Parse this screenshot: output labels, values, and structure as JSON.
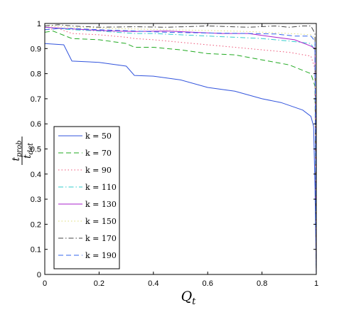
{
  "chart_data": {
    "type": "line",
    "xlabel_main": "Q",
    "xlabel_sub": "t",
    "ylabel_num": "t",
    "ylabel_num_sub": "prob",
    "ylabel_den": "t",
    "ylabel_den_sub": "det",
    "xlim": [
      0,
      1
    ],
    "ylim": [
      0,
      1
    ],
    "xticks": [
      "0",
      "0.2",
      "0.4",
      "0.6",
      "0.8",
      "1"
    ],
    "yticks": [
      "0",
      "0.1",
      "0.2",
      "0.3",
      "0.4",
      "0.5",
      "0.6",
      "0.7",
      "0.8",
      "0.9",
      "1"
    ],
    "grid": false,
    "legend_position": "lower-left",
    "series": [
      {
        "name": "k = 50",
        "color": "#3355dd",
        "dash": "solid",
        "points": [
          [
            0,
            0.92
          ],
          [
            0.07,
            0.915
          ],
          [
            0.1,
            0.85
          ],
          [
            0.2,
            0.845
          ],
          [
            0.3,
            0.83
          ],
          [
            0.33,
            0.793
          ],
          [
            0.4,
            0.79
          ],
          [
            0.5,
            0.775
          ],
          [
            0.6,
            0.745
          ],
          [
            0.7,
            0.73
          ],
          [
            0.8,
            0.7
          ],
          [
            0.87,
            0.685
          ],
          [
            0.95,
            0.655
          ],
          [
            0.98,
            0.63
          ],
          [
            0.99,
            0.59
          ],
          [
            0.995,
            0.35
          ],
          [
            1.0,
            0.0
          ]
        ]
      },
      {
        "name": "k = 70",
        "color": "#22aa22",
        "dash": "dashed",
        "points": [
          [
            0,
            0.965
          ],
          [
            0.03,
            0.97
          ],
          [
            0.1,
            0.94
          ],
          [
            0.2,
            0.935
          ],
          [
            0.3,
            0.92
          ],
          [
            0.33,
            0.905
          ],
          [
            0.4,
            0.905
          ],
          [
            0.5,
            0.895
          ],
          [
            0.6,
            0.88
          ],
          [
            0.7,
            0.875
          ],
          [
            0.8,
            0.855
          ],
          [
            0.9,
            0.835
          ],
          [
            0.98,
            0.8
          ],
          [
            0.995,
            0.75
          ],
          [
            1.0,
            0.0
          ]
        ]
      },
      {
        "name": "k = 90",
        "color": "#ee5577",
        "dash": "dotted",
        "points": [
          [
            0,
            0.975
          ],
          [
            0.05,
            0.98
          ],
          [
            0.1,
            0.96
          ],
          [
            0.2,
            0.955
          ],
          [
            0.3,
            0.945
          ],
          [
            0.33,
            0.94
          ],
          [
            0.4,
            0.935
          ],
          [
            0.5,
            0.925
          ],
          [
            0.6,
            0.915
          ],
          [
            0.7,
            0.905
          ],
          [
            0.8,
            0.895
          ],
          [
            0.9,
            0.885
          ],
          [
            0.98,
            0.87
          ],
          [
            0.995,
            0.82
          ],
          [
            1.0,
            0.0
          ]
        ]
      },
      {
        "name": "k = 110",
        "color": "#33cccc",
        "dash": "dashdot",
        "points": [
          [
            0,
            0.985
          ],
          [
            0.1,
            0.975
          ],
          [
            0.2,
            0.97
          ],
          [
            0.33,
            0.96
          ],
          [
            0.4,
            0.96
          ],
          [
            0.5,
            0.955
          ],
          [
            0.6,
            0.95
          ],
          [
            0.7,
            0.945
          ],
          [
            0.8,
            0.94
          ],
          [
            0.9,
            0.93
          ],
          [
            0.98,
            0.92
          ],
          [
            0.995,
            0.89
          ],
          [
            1.0,
            0.0
          ]
        ]
      },
      {
        "name": "k = 130",
        "color": "#aa22cc",
        "dash": "solid",
        "points": [
          [
            0,
            0.985
          ],
          [
            0.08,
            0.98
          ],
          [
            0.15,
            0.975
          ],
          [
            0.25,
            0.97
          ],
          [
            0.33,
            0.968
          ],
          [
            0.45,
            0.97
          ],
          [
            0.55,
            0.965
          ],
          [
            0.65,
            0.96
          ],
          [
            0.75,
            0.96
          ],
          [
            0.85,
            0.945
          ],
          [
            0.92,
            0.935
          ],
          [
            0.98,
            0.91
          ],
          [
            0.995,
            0.9
          ],
          [
            1.0,
            0.0
          ]
        ]
      },
      {
        "name": "k = 150",
        "color": "#dddd77",
        "dash": "dotted",
        "points": [
          [
            0,
            0.99
          ],
          [
            0.1,
            0.985
          ],
          [
            0.2,
            0.982
          ],
          [
            0.33,
            0.978
          ],
          [
            0.45,
            0.975
          ],
          [
            0.6,
            0.972
          ],
          [
            0.75,
            0.968
          ],
          [
            0.9,
            0.96
          ],
          [
            0.98,
            0.955
          ],
          [
            0.995,
            0.94
          ],
          [
            1.0,
            0.0
          ]
        ]
      },
      {
        "name": "k = 170",
        "color": "#444444",
        "dash": "dashdot",
        "points": [
          [
            0,
            0.99
          ],
          [
            0.05,
            0.995
          ],
          [
            0.1,
            0.99
          ],
          [
            0.2,
            0.985
          ],
          [
            0.33,
            0.987
          ],
          [
            0.45,
            0.985
          ],
          [
            0.6,
            0.99
          ],
          [
            0.75,
            0.985
          ],
          [
            0.85,
            0.99
          ],
          [
            0.9,
            0.985
          ],
          [
            0.95,
            0.99
          ],
          [
            0.98,
            0.99
          ],
          [
            0.995,
            0.96
          ],
          [
            1.0,
            0.0
          ]
        ]
      },
      {
        "name": "k = 190",
        "color": "#3366ee",
        "dash": "dashed",
        "points": [
          [
            0,
            0.975
          ],
          [
            0.05,
            0.98
          ],
          [
            0.1,
            0.98
          ],
          [
            0.2,
            0.975
          ],
          [
            0.33,
            0.97
          ],
          [
            0.45,
            0.965
          ],
          [
            0.6,
            0.962
          ],
          [
            0.75,
            0.96
          ],
          [
            0.85,
            0.958
          ],
          [
            0.92,
            0.95
          ],
          [
            0.98,
            0.95
          ],
          [
            0.995,
            0.93
          ],
          [
            1.0,
            0.0
          ]
        ]
      }
    ]
  }
}
